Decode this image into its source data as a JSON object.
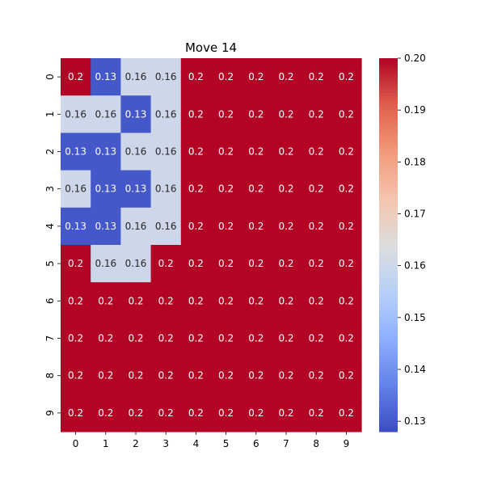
{
  "chart_data": {
    "type": "heatmap",
    "title": "Move 14",
    "x_tick_labels": [
      "0",
      "1",
      "2",
      "3",
      "4",
      "5",
      "6",
      "7",
      "8",
      "9"
    ],
    "y_tick_labels": [
      "0",
      "1",
      "2",
      "3",
      "4",
      "5",
      "6",
      "7",
      "8",
      "9"
    ],
    "cell_labels": [
      [
        "0.2",
        "0.13",
        "0.16",
        "0.16",
        "0.2",
        "0.2",
        "0.2",
        "0.2",
        "0.2",
        "0.2"
      ],
      [
        "0.16",
        "0.16",
        "0.13",
        "0.16",
        "0.2",
        "0.2",
        "0.2",
        "0.2",
        "0.2",
        "0.2"
      ],
      [
        "0.13",
        "0.13",
        "0.16",
        "0.16",
        "0.2",
        "0.2",
        "0.2",
        "0.2",
        "0.2",
        "0.2"
      ],
      [
        "0.16",
        "0.13",
        "0.13",
        "0.16",
        "0.2",
        "0.2",
        "0.2",
        "0.2",
        "0.2",
        "0.2"
      ],
      [
        "0.13",
        "0.13",
        "0.16",
        "0.16",
        "0.2",
        "0.2",
        "0.2",
        "0.2",
        "0.2",
        "0.2"
      ],
      [
        "0.2",
        "0.16",
        "0.16",
        "0.2",
        "0.2",
        "0.2",
        "0.2",
        "0.2",
        "0.2",
        "0.2"
      ],
      [
        "0.2",
        "0.2",
        "0.2",
        "0.2",
        "0.2",
        "0.2",
        "0.2",
        "0.2",
        "0.2",
        "0.2"
      ],
      [
        "0.2",
        "0.2",
        "0.2",
        "0.2",
        "0.2",
        "0.2",
        "0.2",
        "0.2",
        "0.2",
        "0.2"
      ],
      [
        "0.2",
        "0.2",
        "0.2",
        "0.2",
        "0.2",
        "0.2",
        "0.2",
        "0.2",
        "0.2",
        "0.2"
      ],
      [
        "0.2",
        "0.2",
        "0.2",
        "0.2",
        "0.2",
        "0.2",
        "0.2",
        "0.2",
        "0.2",
        "0.2"
      ]
    ],
    "colorbar": {
      "colormap": "coolwarm",
      "range": [
        0.128,
        0.2
      ],
      "tick_values": [
        0.13,
        0.14,
        0.15,
        0.16,
        0.17,
        0.18,
        0.19,
        0.2
      ],
      "tick_labels": [
        "0.13",
        "0.14",
        "0.15",
        "0.16",
        "0.17",
        "0.18",
        "0.19",
        "0.20"
      ]
    }
  }
}
